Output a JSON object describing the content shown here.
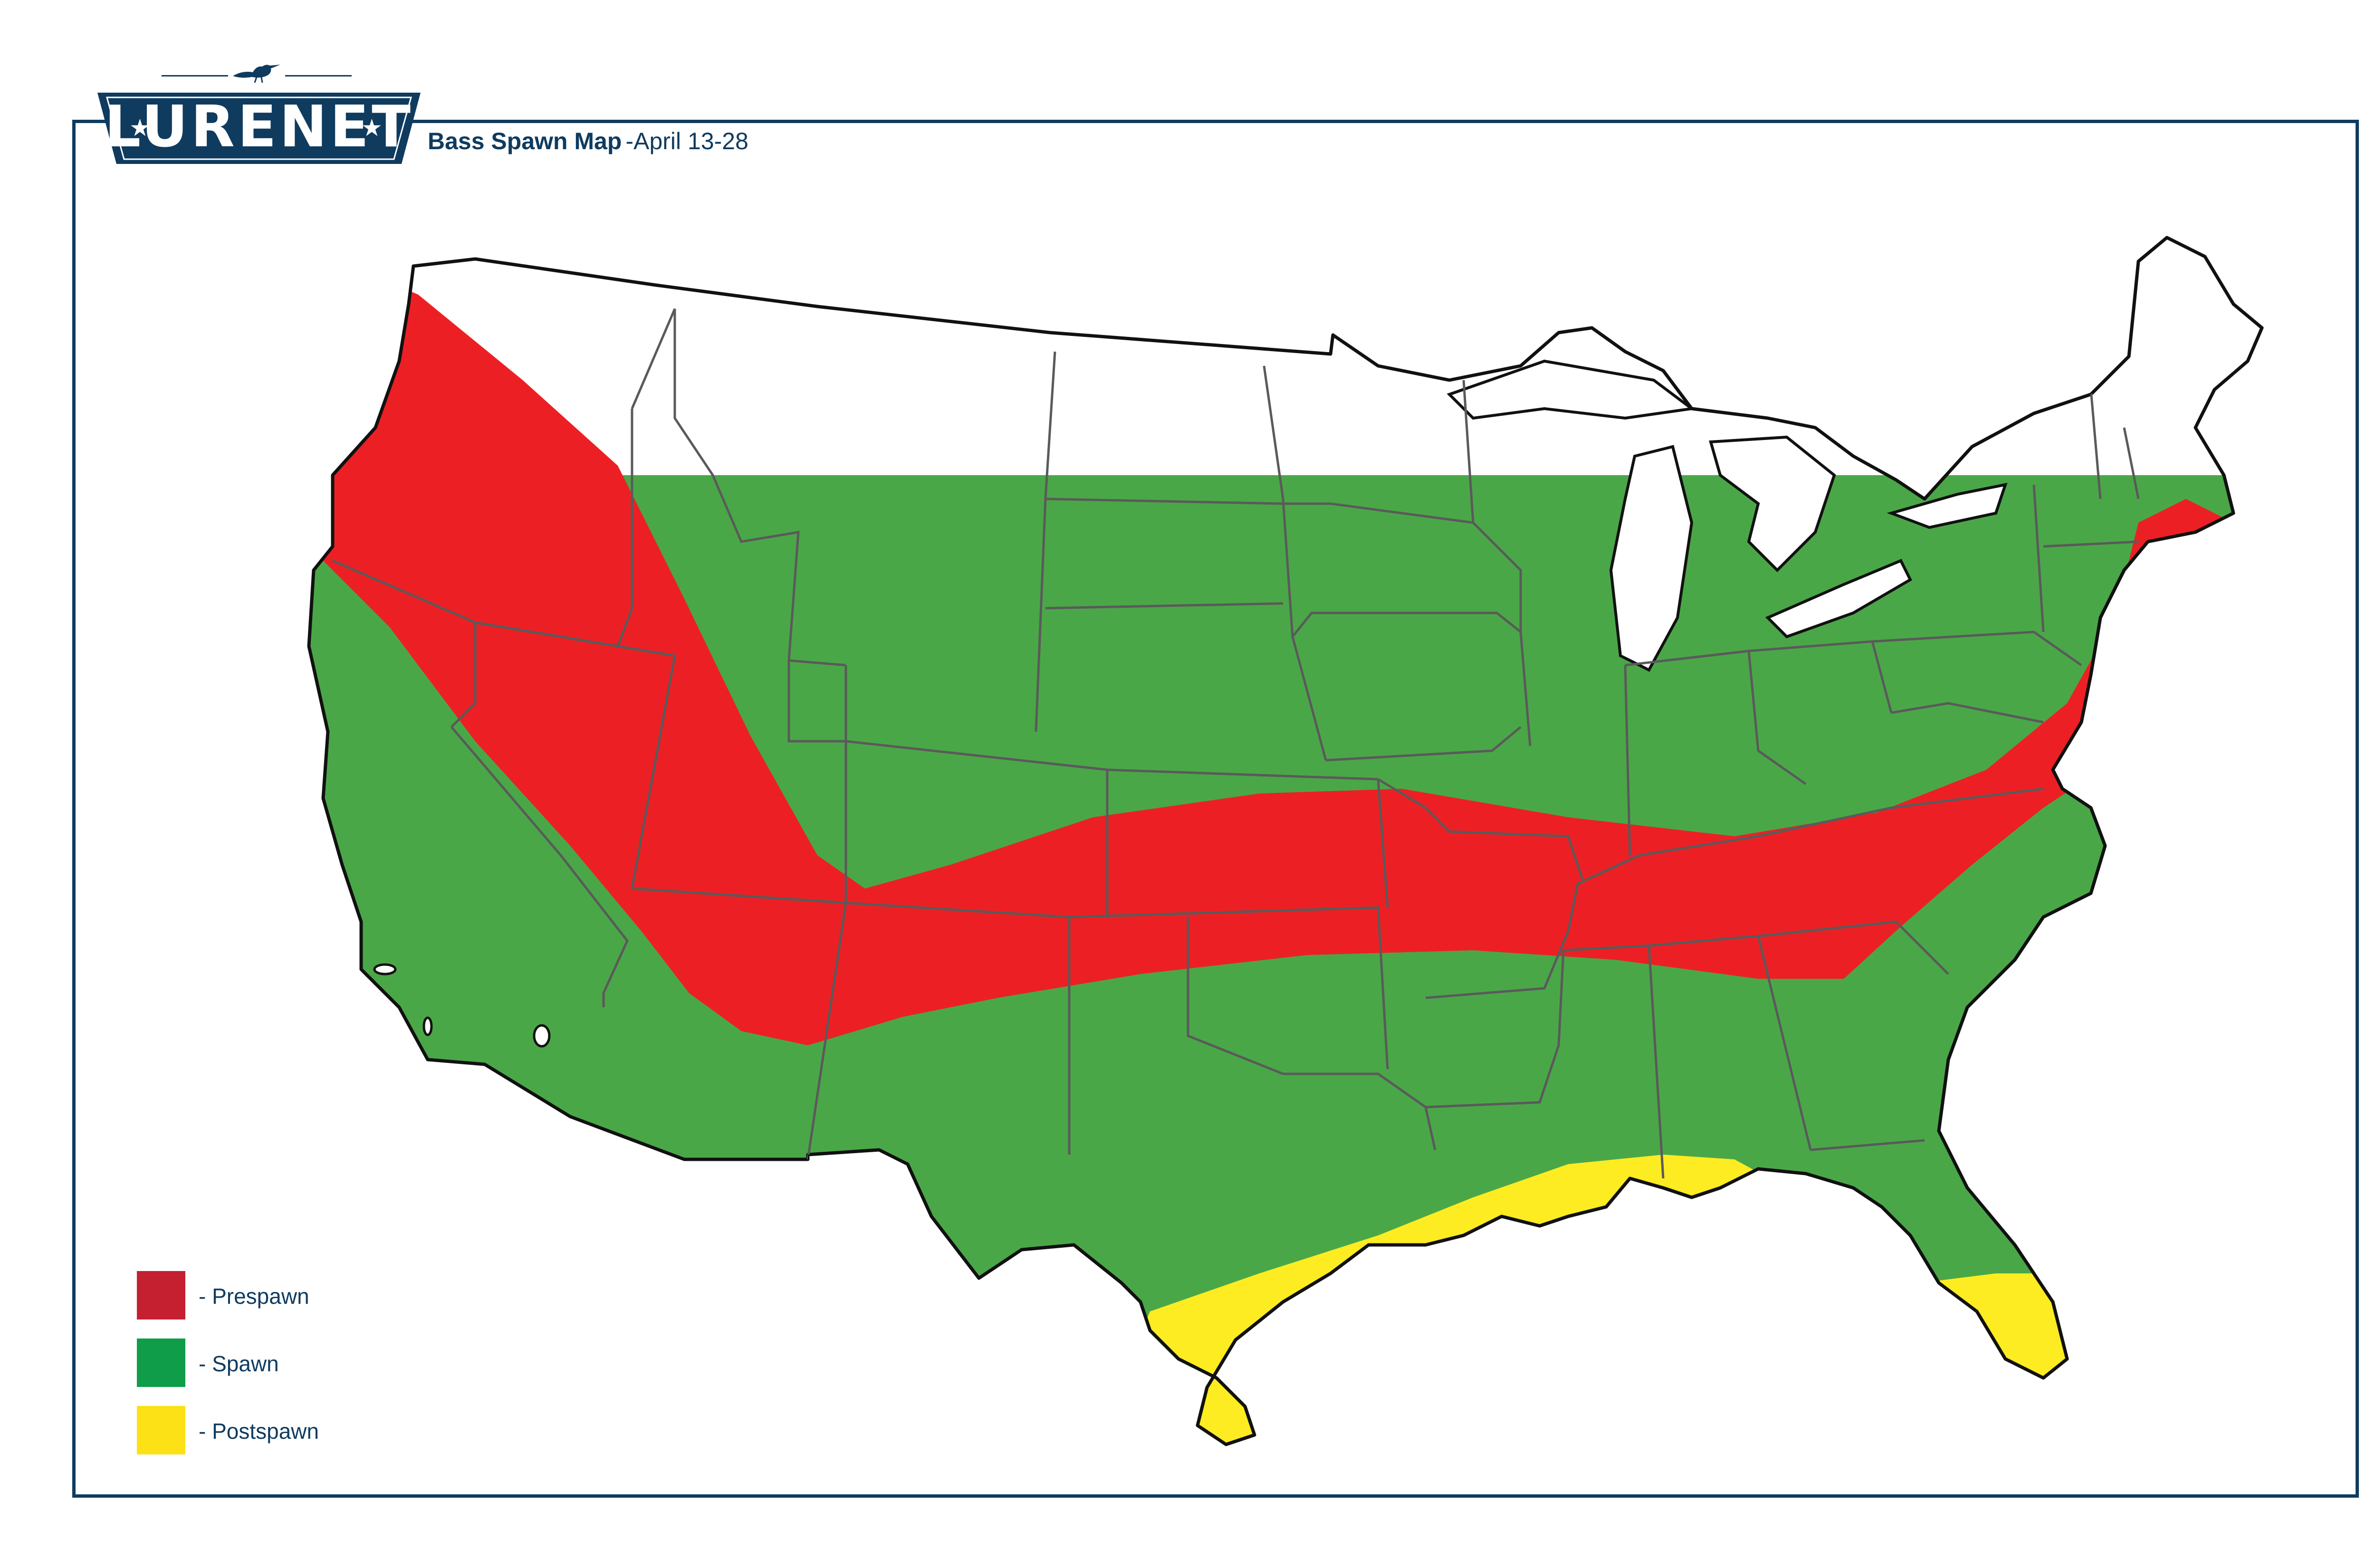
{
  "brand": {
    "name": "LURENET"
  },
  "title": {
    "main": "Bass Spawn Map",
    "dates": "-April 13-28"
  },
  "colors": {
    "navy": "#0f3b5f",
    "prespawn": "#ec2024",
    "spawn": "#4aa748",
    "postspawn": "#fcec21",
    "legend_prespawn": "#c42030",
    "legend_spawn": "#0f9d4a",
    "legend_postspawn": "#fbe115"
  },
  "legend": {
    "items": [
      {
        "label": "- Prespawn",
        "color": "#c42030"
      },
      {
        "label": "- Spawn",
        "color": "#0f9d4a"
      },
      {
        "label": "- Postspawn",
        "color": "#fbe115"
      }
    ]
  },
  "map": {
    "region": "Contiguous United States",
    "zones": [
      "Prespawn",
      "Spawn",
      "Postspawn"
    ]
  }
}
